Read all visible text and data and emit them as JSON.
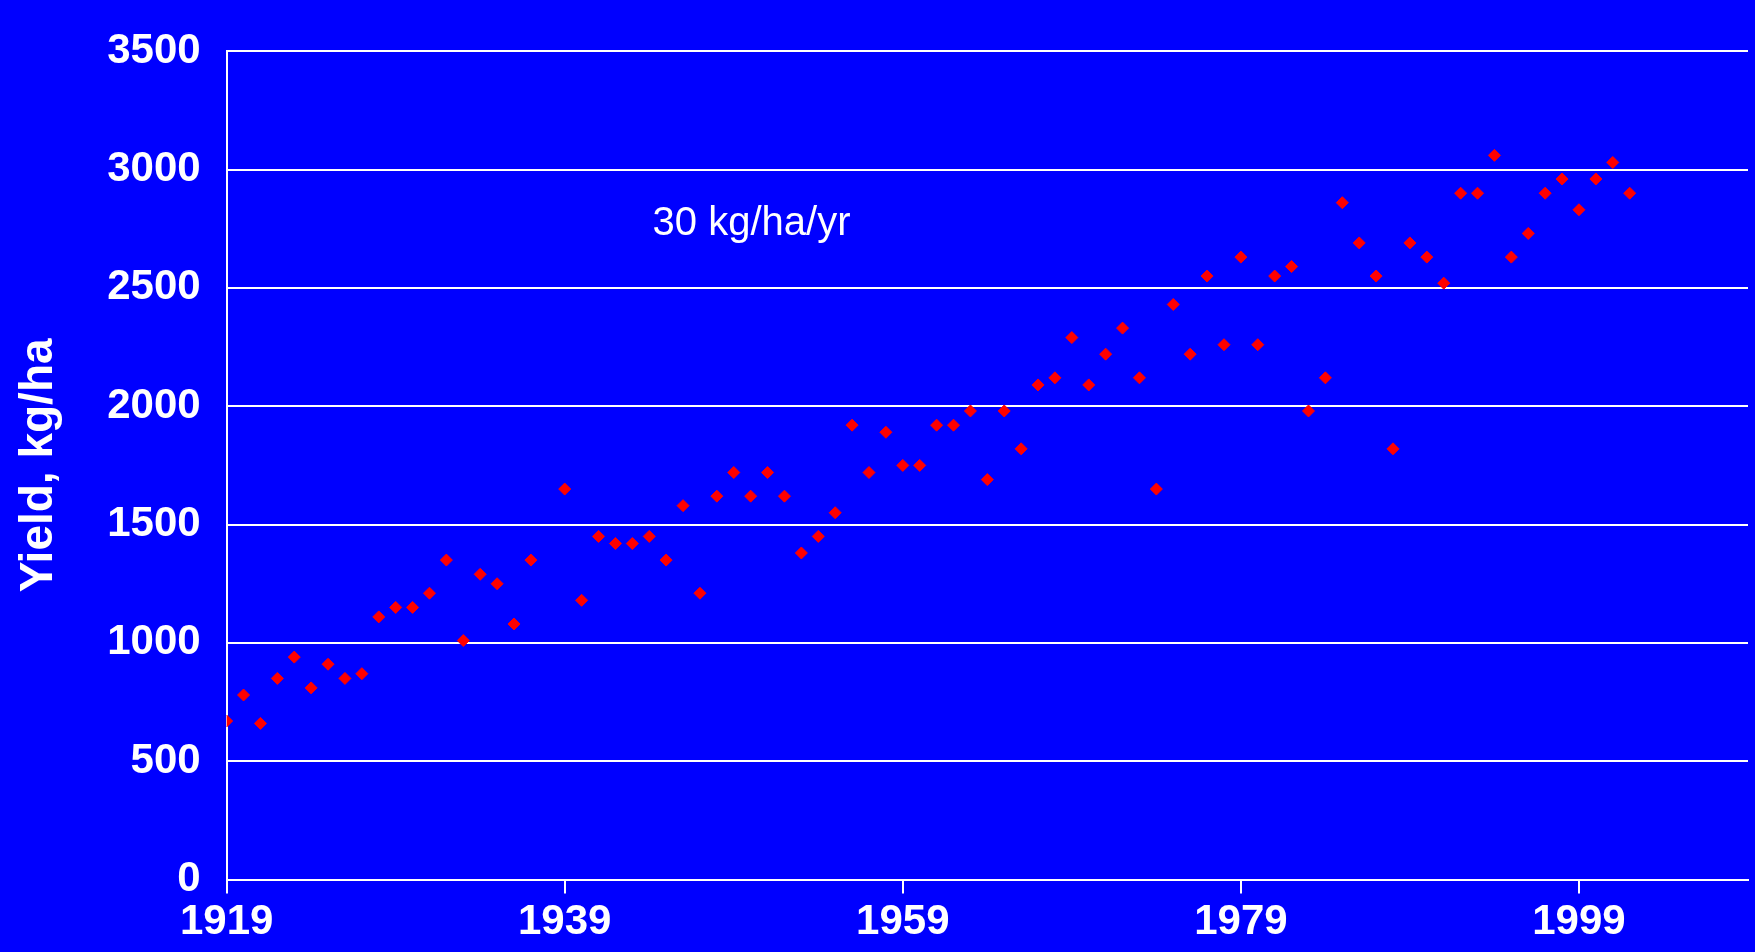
{
  "chart_data": {
    "type": "scatter",
    "ylabel": "Yield, kg/ha",
    "annotations": [
      "30 kg/ha/yr"
    ],
    "x": [
      1919,
      1920,
      1921,
      1922,
      1923,
      1924,
      1925,
      1926,
      1927,
      1928,
      1929,
      1930,
      1931,
      1932,
      1933,
      1934,
      1935,
      1936,
      1937,
      1939,
      1940,
      1941,
      1942,
      1943,
      1944,
      1945,
      1946,
      1947,
      1948,
      1949,
      1950,
      1951,
      1952,
      1953,
      1954,
      1955,
      1956,
      1957,
      1958,
      1959,
      1960,
      1961,
      1962,
      1963,
      1964,
      1965,
      1966,
      1967,
      1968,
      1969,
      1970,
      1971,
      1972,
      1973,
      1974,
      1975,
      1976,
      1977,
      1978,
      1979,
      1980,
      1981,
      1982,
      1983,
      1984,
      1985,
      1986,
      1987,
      1988,
      1989,
      1990,
      1991,
      1992,
      1993,
      1994,
      1995,
      1996,
      1997,
      1998,
      1999,
      2000,
      2001,
      2002
    ],
    "series": [
      {
        "color": "#ff0000",
        "values": [
          670,
          780,
          660,
          850,
          940,
          810,
          910,
          850,
          870,
          1110,
          1150,
          1150,
          1210,
          1350,
          1010,
          1290,
          1250,
          1080,
          1350,
          1650,
          1180,
          1450,
          1420,
          1420,
          1450,
          1350,
          1580,
          1210,
          1620,
          1720,
          1620,
          1720,
          1620,
          1380,
          1450,
          1550,
          1920,
          1720,
          1890,
          1750,
          1750,
          1920,
          1920,
          1980,
          1690,
          1980,
          1820,
          2090,
          2120,
          2290,
          2090,
          2220,
          2330,
          2120,
          1650,
          2430,
          2220,
          2550,
          2260,
          2630,
          2260,
          2550,
          2590,
          1980,
          2120,
          2860,
          2690,
          2550,
          1820,
          2690,
          2630,
          2520,
          2900,
          2900,
          3060,
          2630,
          2730,
          2900,
          2960,
          2830,
          2960,
          3030,
          2900
        ]
      }
    ],
    "xlim": [
      1919,
      2009
    ],
    "xticks": [
      1919,
      1939,
      1959,
      1979,
      1999
    ],
    "ylim": [
      0,
      3500
    ],
    "yticks": [
      0,
      500,
      1000,
      1500,
      2000,
      2500,
      3000,
      3500
    ],
    "grid": "y",
    "legend": false,
    "marker": "diamond"
  }
}
